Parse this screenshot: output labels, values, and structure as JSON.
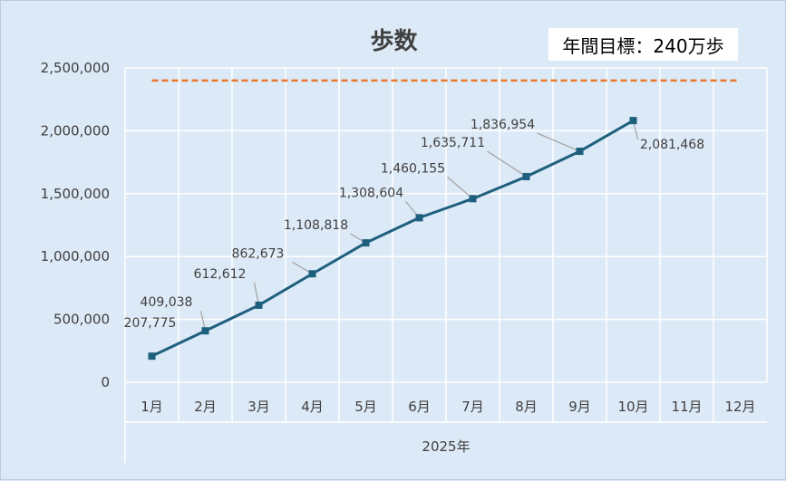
{
  "colors": {
    "background": "#dce9f6",
    "grid": "#ffffff",
    "series": "#1f5f7e",
    "target_line": "#e8782c",
    "leader": "#a6a6a6",
    "text": "#404040"
  },
  "chart_data": {
    "type": "line",
    "title": "歩数",
    "goal_label": "年間目標：240万歩",
    "xlabel": "2025年",
    "ylabel": "",
    "categories": [
      "1月",
      "2月",
      "3月",
      "4月",
      "5月",
      "6月",
      "7月",
      "8月",
      "9月",
      "10月",
      "11月",
      "12月"
    ],
    "series": [
      {
        "values": [
          207775,
          409038,
          612612,
          862673,
          1108818,
          1308604,
          1460155,
          1635711,
          1836954,
          2081468,
          null,
          null
        ],
        "data_labels": [
          "207,775",
          "409,038",
          "612,612",
          "862,673",
          "1,108,818",
          "1,308,604",
          "1,460,155",
          "1,635,711",
          "1,836,954",
          "2,081,468"
        ]
      }
    ],
    "target_value": 2400000,
    "ylim": [
      0,
      2500000
    ],
    "y_ticks": [
      0,
      500000,
      1000000,
      1500000,
      2000000,
      2500000
    ],
    "y_tick_labels": [
      "0",
      "500,000",
      "1,000,000",
      "1,500,000",
      "2,000,000",
      "2,500,000"
    ],
    "grid": true,
    "legend": "none",
    "marker": "square"
  }
}
